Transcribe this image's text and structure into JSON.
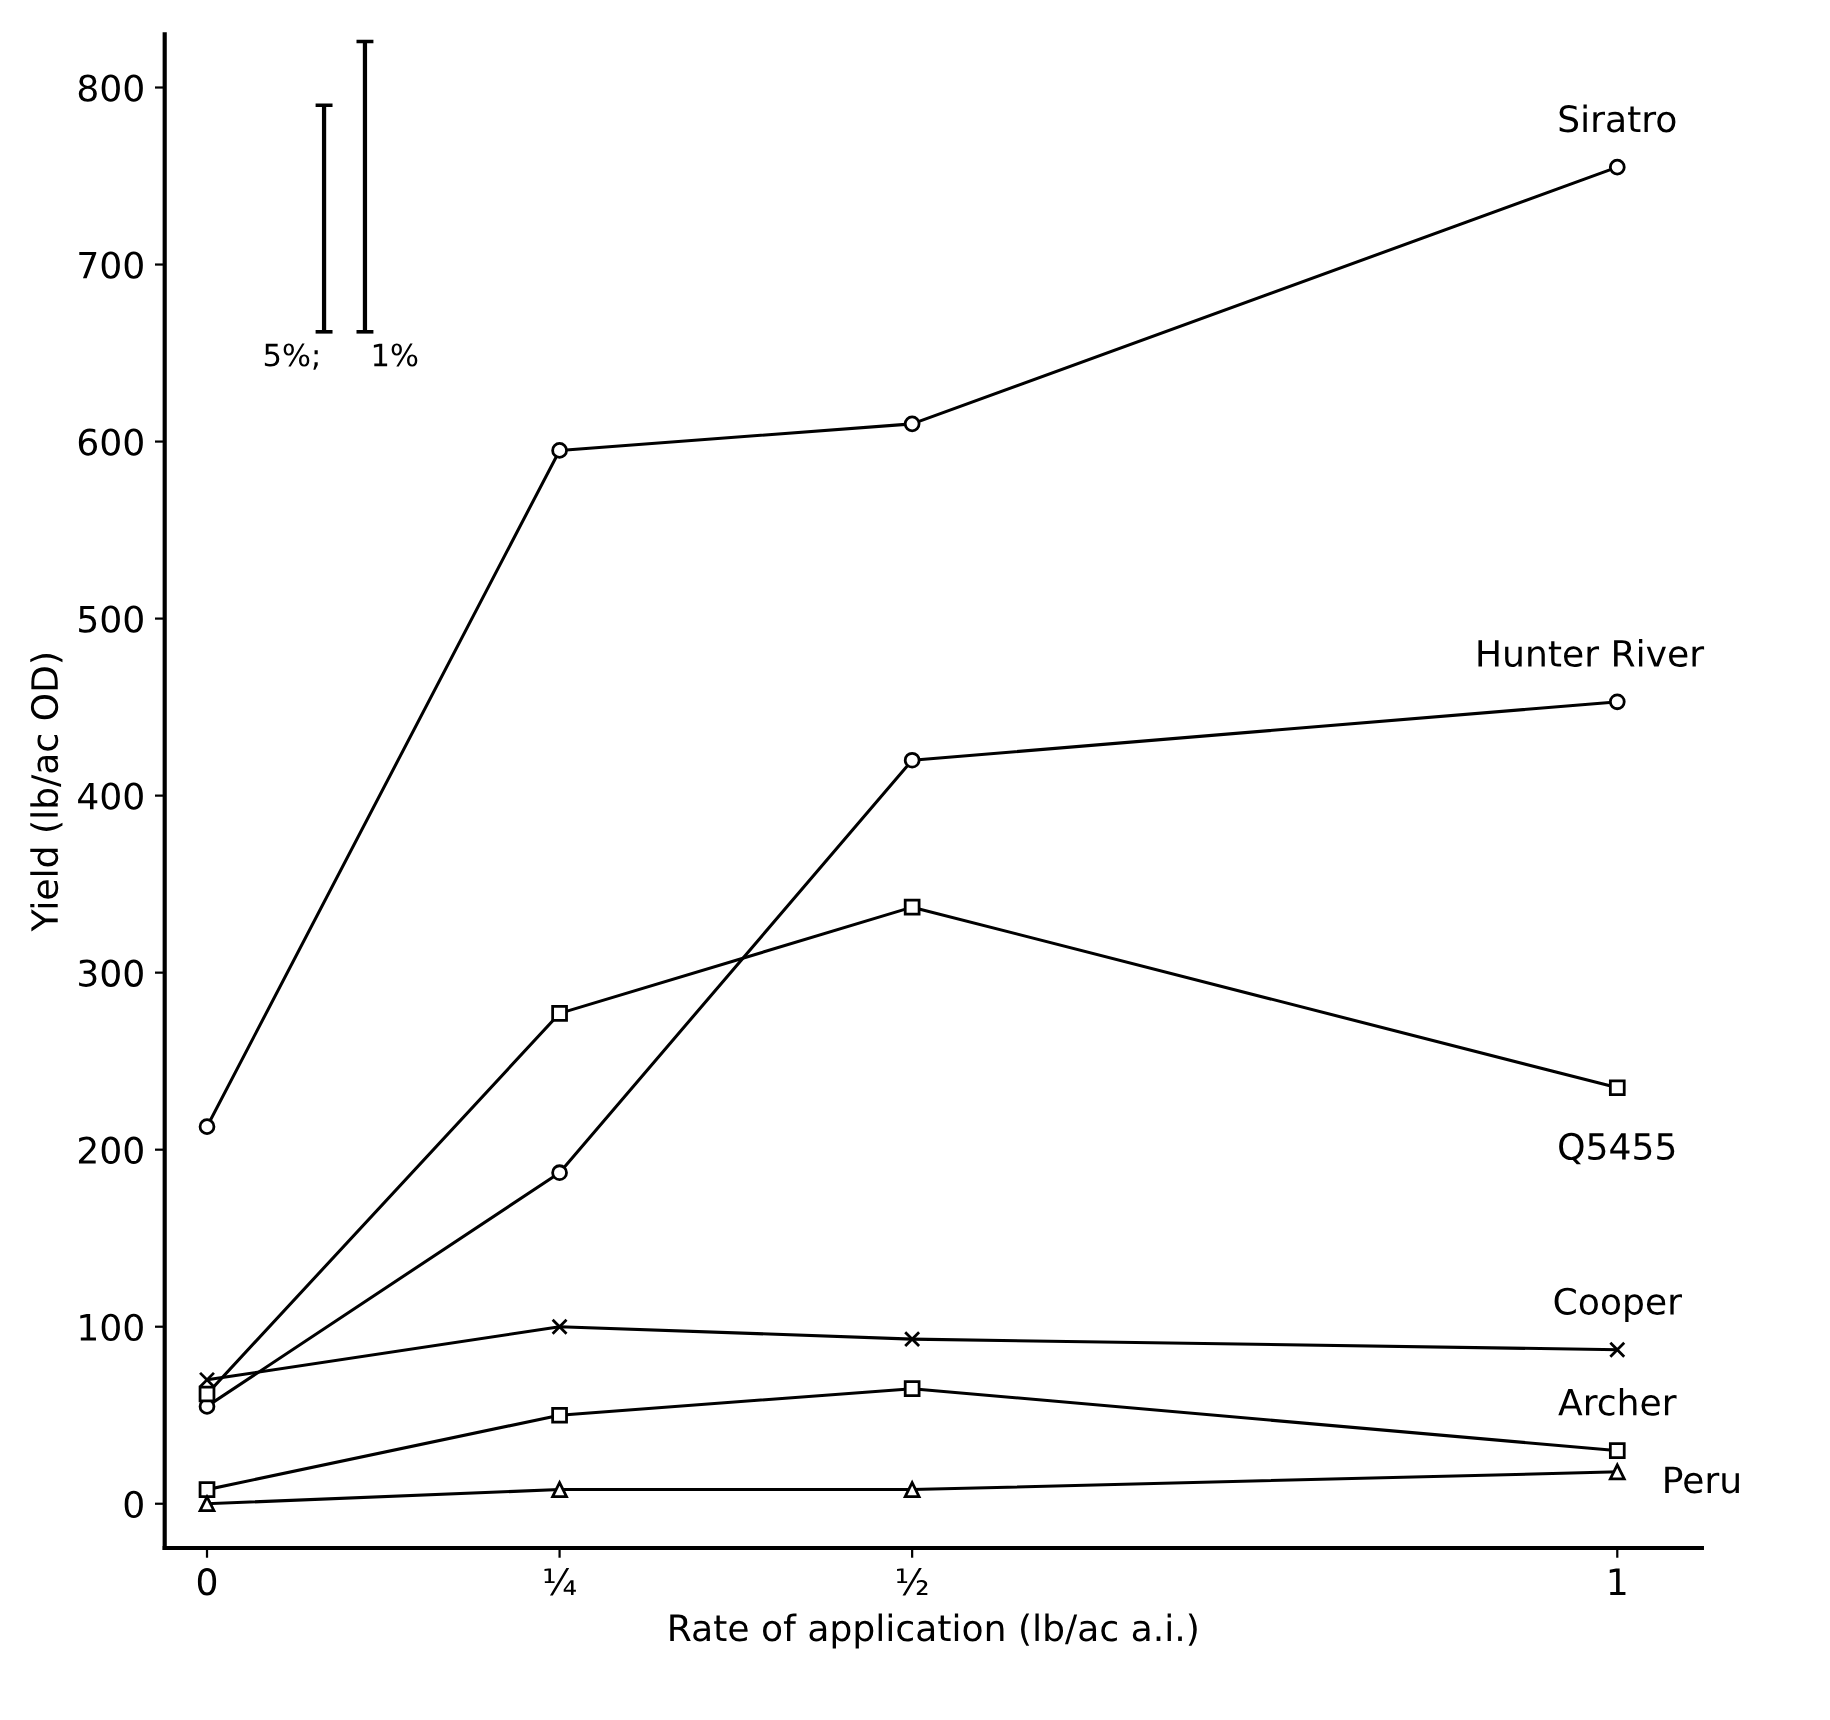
{
  "chart_data": {
    "type": "line",
    "xlabel": "Rate of application (lb/ac a.i.)",
    "ylabel": "Yield (lb/ac OD)",
    "x": [
      0,
      0.25,
      0.5,
      1
    ],
    "xlim": [
      -0.03,
      1.06
    ],
    "xticks": [
      0,
      {
        "value": 0.25,
        "label": "¼"
      },
      {
        "value": 0.5,
        "label": "½"
      },
      1
    ],
    "ylim": [
      -25,
      830
    ],
    "yticks": [
      0,
      100,
      200,
      300,
      400,
      500,
      600,
      700,
      800
    ],
    "grid": false,
    "line_style": "solid",
    "series": [
      {
        "name": "Siratro",
        "color": "#000000",
        "marker": "circle",
        "values": [
          213,
          595,
          610,
          755
        ]
      },
      {
        "name": "Hunter River",
        "color": "#000000",
        "marker": "circle",
        "values": [
          55,
          187,
          420,
          453
        ]
      },
      {
        "name": "Q5455",
        "color": "#000000",
        "marker": "square",
        "values": [
          62,
          277,
          337,
          235
        ]
      },
      {
        "name": "Cooper",
        "color": "#000000",
        "marker": "cross",
        "values": [
          70,
          100,
          93,
          87
        ]
      },
      {
        "name": "Archer",
        "color": "#000000",
        "marker": "square",
        "values": [
          8,
          50,
          65,
          30
        ]
      },
      {
        "name": "Peru",
        "color": "#000000",
        "marker": "triangle",
        "values": [
          0,
          8,
          8,
          18
        ]
      },
      {
        "type": "bar",
        "color": "#000000",
        "x": [
          0.083
        ],
        "base": [
          662
        ],
        "values": [
          128
        ]
      },
      {
        "type": "bar",
        "color": "#000000",
        "x": [
          0.112
        ],
        "base": [
          662
        ],
        "values": [
          164
        ]
      }
    ],
    "annotations": [
      {
        "text": "5%;",
        "x": 0.083,
        "y": 662
      },
      {
        "text": "1%",
        "x": 0.112,
        "y": 662
      }
    ]
  }
}
